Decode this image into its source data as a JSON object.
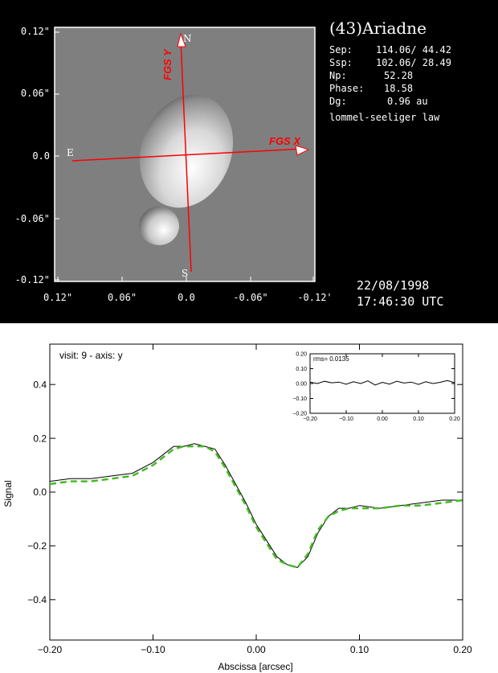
{
  "top_panel": {
    "target": "(43)Ariadne",
    "info": [
      {
        "label": "Sep:",
        "value": "114.06/ 44.42"
      },
      {
        "label": "Ssp:",
        "value": "102.06/ 28.49"
      },
      {
        "label": "Np:",
        "value": "52.28"
      },
      {
        "label": "Phase:",
        "value": "18.58"
      },
      {
        "label": "Dg:",
        "value": "0.96 au"
      }
    ],
    "law": "lommel-seeliger law",
    "date": "22/08/1998",
    "time": "17:46:30 UTC",
    "y_ticks": [
      "0.12\"",
      "0.06\"",
      "0.0",
      "-0.06\"",
      "-0.12\""
    ],
    "x_ticks": [
      "0.12\"",
      "0.06\"",
      "0.0",
      "-0.06\"",
      "-0.12'"
    ],
    "fgs_x_label": "FGS X",
    "fgs_y_label": "FGS Y",
    "compass": {
      "north": "N",
      "south": "S",
      "east": "E"
    },
    "colors": {
      "background": "#000000",
      "sky": "#7f7f7f",
      "axes": "#ff0000"
    }
  },
  "chart_data": [
    {
      "type": "line",
      "annotation": "visit: 9 - axis: y",
      "xlabel": "Abscissa [arcsec]",
      "ylabel": "Signal",
      "xlim": [
        -0.2,
        0.2
      ],
      "ylim": [
        -0.55,
        0.55
      ],
      "x_ticks": [
        "-0.20",
        "-0.10",
        "0.00",
        "0.10",
        "0.20"
      ],
      "y_ticks": [
        "-0.4",
        "-0.2",
        "0.0",
        "0.2",
        "0.4"
      ],
      "series": [
        {
          "style": "solid",
          "color": "#000000",
          "x": [
            -0.2,
            -0.18,
            -0.16,
            -0.14,
            -0.12,
            -0.1,
            -0.09,
            -0.08,
            -0.07,
            -0.06,
            -0.05,
            -0.04,
            -0.03,
            -0.02,
            -0.01,
            0.0,
            0.01,
            0.02,
            0.03,
            0.04,
            0.05,
            0.06,
            0.07,
            0.08,
            0.09,
            0.1,
            0.12,
            0.14,
            0.16,
            0.18,
            0.2
          ],
          "y": [
            0.04,
            0.05,
            0.05,
            0.06,
            0.07,
            0.11,
            0.14,
            0.17,
            0.17,
            0.18,
            0.17,
            0.16,
            0.1,
            0.03,
            -0.04,
            -0.12,
            -0.18,
            -0.24,
            -0.27,
            -0.28,
            -0.24,
            -0.15,
            -0.09,
            -0.06,
            -0.06,
            -0.05,
            -0.06,
            -0.05,
            -0.04,
            -0.03,
            -0.03
          ]
        },
        {
          "style": "dashed",
          "color": "#44bb22",
          "x": [
            -0.2,
            -0.18,
            -0.16,
            -0.14,
            -0.12,
            -0.1,
            -0.09,
            -0.08,
            -0.07,
            -0.06,
            -0.05,
            -0.04,
            -0.03,
            -0.02,
            -0.01,
            0.0,
            0.01,
            0.02,
            0.03,
            0.04,
            0.05,
            0.06,
            0.07,
            0.08,
            0.09,
            0.1,
            0.12,
            0.14,
            0.16,
            0.18,
            0.2
          ],
          "y": [
            0.03,
            0.04,
            0.04,
            0.05,
            0.06,
            0.1,
            0.13,
            0.16,
            0.17,
            0.17,
            0.17,
            0.15,
            0.09,
            0.02,
            -0.05,
            -0.13,
            -0.19,
            -0.25,
            -0.27,
            -0.28,
            -0.23,
            -0.14,
            -0.09,
            -0.07,
            -0.06,
            -0.06,
            -0.06,
            -0.05,
            -0.05,
            -0.04,
            -0.03
          ]
        }
      ]
    },
    {
      "type": "line",
      "annotation": "rms= 0.0135",
      "xlim": [
        -0.2,
        0.2
      ],
      "ylim": [
        -0.2,
        0.2
      ],
      "x_ticks": [
        "-0.20",
        "-0.10",
        "0.00",
        "0.10",
        "0.20"
      ],
      "y_ticks": [
        "-0.20",
        "-0.10",
        "0.00",
        "0.10",
        "0.20"
      ],
      "series": [
        {
          "style": "solid",
          "color": "#000000",
          "x": [
            -0.2,
            -0.18,
            -0.16,
            -0.14,
            -0.12,
            -0.1,
            -0.08,
            -0.06,
            -0.04,
            -0.02,
            0.0,
            0.02,
            0.04,
            0.06,
            0.08,
            0.1,
            0.12,
            0.14,
            0.16,
            0.18,
            0.2
          ],
          "y": [
            0.01,
            0.0,
            0.015,
            0.005,
            0.01,
            -0.005,
            0.012,
            0.0,
            0.018,
            -0.01,
            0.008,
            -0.004,
            0.015,
            0.003,
            0.01,
            -0.006,
            0.012,
            0.0,
            0.008,
            0.02,
            0.005
          ]
        }
      ]
    }
  ]
}
